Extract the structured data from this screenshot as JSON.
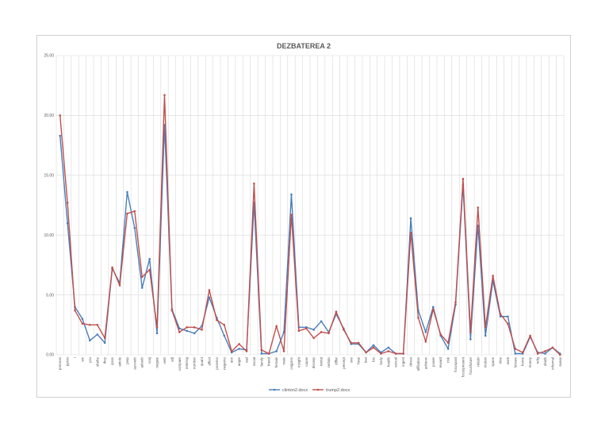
{
  "chart_data": {
    "type": "line",
    "title": "DEZBATEREA 2",
    "xlabel": "",
    "ylabel": "",
    "ylim": [
      0,
      25
    ],
    "yticks": [
      "0.00",
      "5.00",
      "10.00",
      "15.00",
      "20.00",
      "25.00"
    ],
    "grid": true,
    "legend_position": "bottom",
    "categories": [
      "pronoun",
      "ppron",
      "i",
      "we",
      "you",
      "shehe",
      "they",
      "ipron",
      "article",
      "prep",
      "auxverb",
      "adverb",
      "conj",
      "negate",
      "verb",
      "adj",
      "compare",
      "interrog",
      "number",
      "quant",
      "affect",
      "posemo",
      "negemo",
      "anx",
      "anger",
      "sad",
      "social",
      "family",
      "friend",
      "female",
      "male",
      "cogproc",
      "insight",
      "cause",
      "discrep",
      "tentat",
      "certain",
      "differ",
      "percept",
      "see",
      "hear",
      "feel",
      "bio",
      "body",
      "health",
      "sexual",
      "ingest",
      "drives",
      "affiliation",
      "achieve",
      "power",
      "reward",
      "risk",
      "focuspast",
      "focuspresent",
      "focusfuture",
      "relativ",
      "motion",
      "space",
      "time",
      "work",
      "leisure",
      "home",
      "money",
      "relig",
      "death",
      "informal",
      "swear"
    ],
    "series": [
      {
        "name": "clinton2.docx",
        "color": "#4a7ebb",
        "values": [
          18.3,
          11.0,
          4.0,
          3.0,
          1.2,
          1.7,
          1.0,
          7.2,
          6.0,
          13.6,
          10.6,
          5.6,
          8.0,
          1.8,
          19.2,
          3.8,
          2.2,
          2.0,
          1.8,
          2.4,
          4.8,
          3.1,
          1.6,
          0.2,
          0.5,
          0.4,
          12.7,
          0.1,
          0.1,
          0.3,
          1.9,
          13.4,
          2.3,
          2.3,
          2.1,
          2.8,
          1.9,
          3.4,
          2.2,
          0.9,
          0.9,
          0.2,
          0.8,
          0.2,
          0.6,
          0.1,
          0.1,
          11.4,
          3.7,
          1.9,
          4.0,
          1.6,
          0.5,
          4.2,
          14.2,
          1.3,
          10.8,
          1.6,
          6.2,
          3.2,
          3.2,
          0.1,
          0.1,
          1.5,
          0.2,
          0.1,
          0.6,
          0.1
        ]
      },
      {
        "name": "trump2.docx",
        "color": "#c0504d",
        "values": [
          20.0,
          12.7,
          3.7,
          2.6,
          2.5,
          2.5,
          1.4,
          7.3,
          5.8,
          11.8,
          12.0,
          6.5,
          7.1,
          2.3,
          21.7,
          3.7,
          1.9,
          2.3,
          2.3,
          2.1,
          5.4,
          2.9,
          2.5,
          0.3,
          0.9,
          0.3,
          14.3,
          0.4,
          0.1,
          2.4,
          0.3,
          11.7,
          2.0,
          2.2,
          1.4,
          1.9,
          1.8,
          3.6,
          2.1,
          1.0,
          1.0,
          0.2,
          0.6,
          0.1,
          0.3,
          0.1,
          0.1,
          10.2,
          3.1,
          1.1,
          3.8,
          1.7,
          1.0,
          4.4,
          14.7,
          1.9,
          12.3,
          2.3,
          6.6,
          3.4,
          2.6,
          0.5,
          0.2,
          1.6,
          0.1,
          0.3,
          0.6,
          0.0
        ]
      }
    ]
  }
}
